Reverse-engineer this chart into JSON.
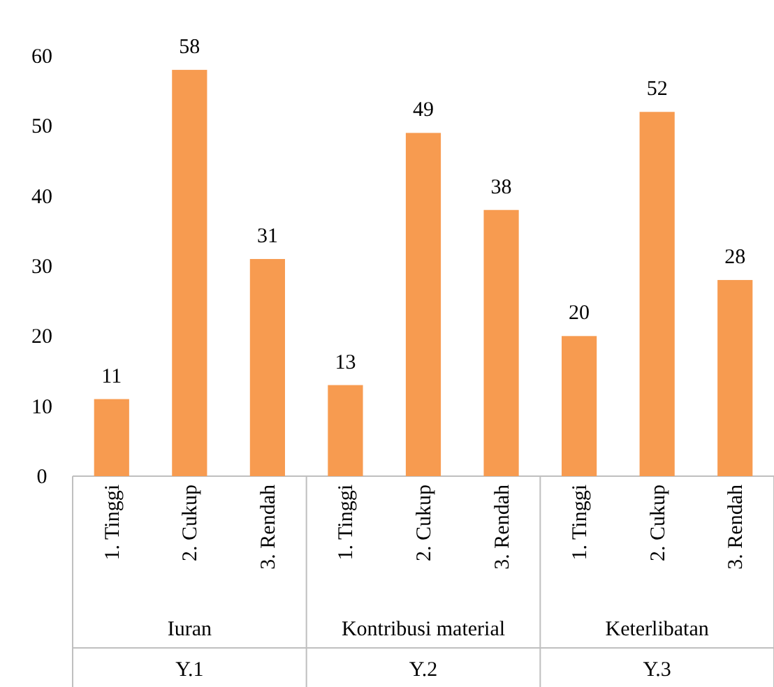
{
  "chart_data": {
    "type": "bar",
    "categories": [
      "1. Tinggi",
      "2. Cukup",
      "3. Rendah",
      "1. Tinggi",
      "2. Cukup",
      "3. Rendah",
      "1. Tinggi",
      "2. Cukup",
      "3. Rendah"
    ],
    "values": [
      11,
      58,
      31,
      13,
      49,
      38,
      20,
      52,
      28
    ],
    "color": "#f79b50",
    "ylim": [
      0,
      60
    ],
    "yticks": [
      0,
      10,
      20,
      30,
      40,
      50,
      60
    ],
    "data_labels": true,
    "annotations": [
      "Iuran",
      "Kontribusi material",
      "Keterlibatan",
      "Y.1",
      "Y.2",
      "Y.3"
    ]
  }
}
